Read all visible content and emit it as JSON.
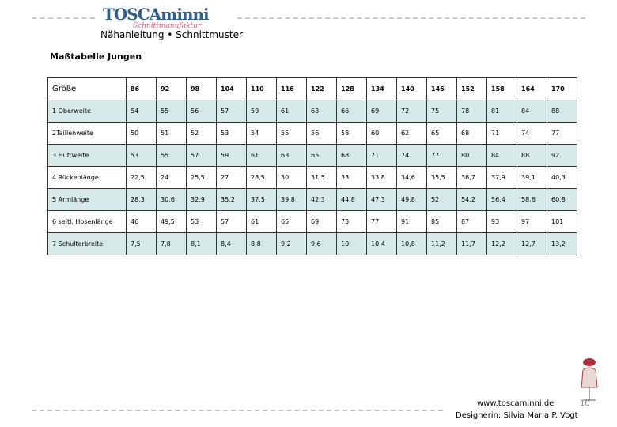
{
  "header": {
    "logo": "TOSCAminni",
    "logo_sub": "Schnittmanufaktur",
    "subtitle": "Nähanleitung • Schnittmuster"
  },
  "title": "Maßtabelle Jungen",
  "table": {
    "columns": [
      "Größe",
      "86",
      "92",
      "98",
      "104",
      "110",
      "116",
      "122",
      "128",
      "134",
      "140",
      "146",
      "152",
      "158",
      "164",
      "170"
    ],
    "rows": [
      [
        "1 Oberweite",
        "54",
        "55",
        "56",
        "57",
        "59",
        "61",
        "63",
        "66",
        "69",
        "72",
        "75",
        "78",
        "81",
        "84",
        "88"
      ],
      [
        "2Taillenweite",
        "50",
        "51",
        "52",
        "53",
        "54",
        "55",
        "56",
        "58",
        "60",
        "62",
        "65",
        "68",
        "71",
        "74",
        "77"
      ],
      [
        "3 Hüftweite",
        "53",
        "55",
        "57",
        "59",
        "61",
        "63",
        "65",
        "68",
        "71",
        "74",
        "77",
        "80",
        "84",
        "88",
        "92"
      ],
      [
        "4 Rückenlänge",
        "22,5",
        "24",
        "25,5",
        "27",
        "28,5",
        "30",
        "31,5",
        "33",
        "33,8",
        "34,6",
        "35,5",
        "36,7",
        "37,9",
        "39,1",
        "40,3"
      ],
      [
        "5 Armlänge",
        "28,3",
        "30,6",
        "32,9",
        "35,2",
        "37,5",
        "39,8",
        "42,3",
        "44,8",
        "47,3",
        "49,8",
        "52",
        "54,2",
        "56,4",
        "58,6",
        "60,8"
      ],
      [
        "6 seitl. Hosenlänge",
        "46",
        "49,5",
        "53",
        "57",
        "61",
        "65",
        "69",
        "73",
        "77",
        "91",
        "85",
        "87",
        "93",
        "97",
        "101"
      ],
      [
        "7 Schulterbreite",
        "7,5",
        "7,8",
        "8,1",
        "8,4",
        "8,8",
        "9,2",
        "9,6",
        "10",
        "10,4",
        "10,8",
        "11,2",
        "11,7",
        "12,2",
        "12,7",
        "13,2"
      ]
    ]
  },
  "footer": {
    "website": "www.toscaminni.de",
    "designer": "Designerin: Silvia Maria P. Vogt",
    "page": "10"
  }
}
